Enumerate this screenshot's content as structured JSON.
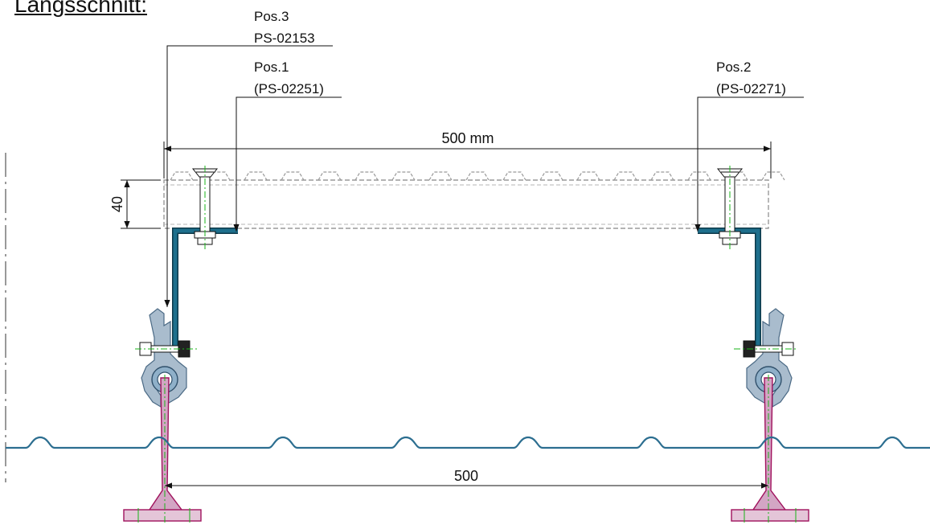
{
  "title": "Längsschnitt:",
  "labels": {
    "pos3_line1": "Pos.3",
    "pos3_line2": "PS-02153",
    "pos1_line1": "Pos.1",
    "pos1_line2": "(PS-02251)",
    "pos2_line1": "Pos.2",
    "pos2_line2": "(PS-02271)"
  },
  "dimensions": {
    "top_span": "500 mm",
    "height": "40",
    "bottom_span": "500"
  },
  "colors": {
    "bracket": "#1e6f8c",
    "clamp": "#7a99b5",
    "rail": "#c2186f",
    "roof": "#2c6e90",
    "grating": "#9a9a9a",
    "axis": "#19b319"
  }
}
